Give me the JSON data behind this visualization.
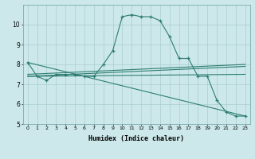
{
  "xlabel": "Humidex (Indice chaleur)",
  "bg_color": "#cce8ea",
  "line_color": "#2e7d72",
  "grid_color": "#aacdd0",
  "xlim": [
    -0.5,
    23.5
  ],
  "ylim": [
    5,
    11
  ],
  "yticks": [
    5,
    6,
    7,
    8,
    9,
    10
  ],
  "xticks": [
    0,
    1,
    2,
    3,
    4,
    5,
    6,
    7,
    8,
    9,
    10,
    11,
    12,
    13,
    14,
    15,
    16,
    17,
    18,
    19,
    20,
    21,
    22,
    23
  ],
  "lines": [
    {
      "x": [
        0,
        1,
        2,
        3,
        4,
        5,
        6,
        7,
        8,
        9,
        10,
        11,
        12,
        13,
        14,
        15,
        16,
        17,
        18,
        19,
        20,
        21,
        22,
        23
      ],
      "y": [
        8.1,
        7.4,
        7.2,
        7.5,
        7.5,
        7.5,
        7.4,
        7.4,
        8.0,
        8.7,
        10.4,
        10.5,
        10.4,
        10.4,
        10.2,
        9.4,
        8.3,
        8.3,
        7.4,
        7.4,
        6.2,
        5.6,
        5.4,
        5.4
      ]
    },
    {
      "x": [
        0,
        23
      ],
      "y": [
        7.5,
        8.0
      ]
    },
    {
      "x": [
        0,
        23
      ],
      "y": [
        7.4,
        7.9
      ]
    },
    {
      "x": [
        0,
        23
      ],
      "y": [
        7.4,
        7.5
      ]
    },
    {
      "x": [
        0,
        23
      ],
      "y": [
        8.1,
        5.4
      ]
    }
  ]
}
